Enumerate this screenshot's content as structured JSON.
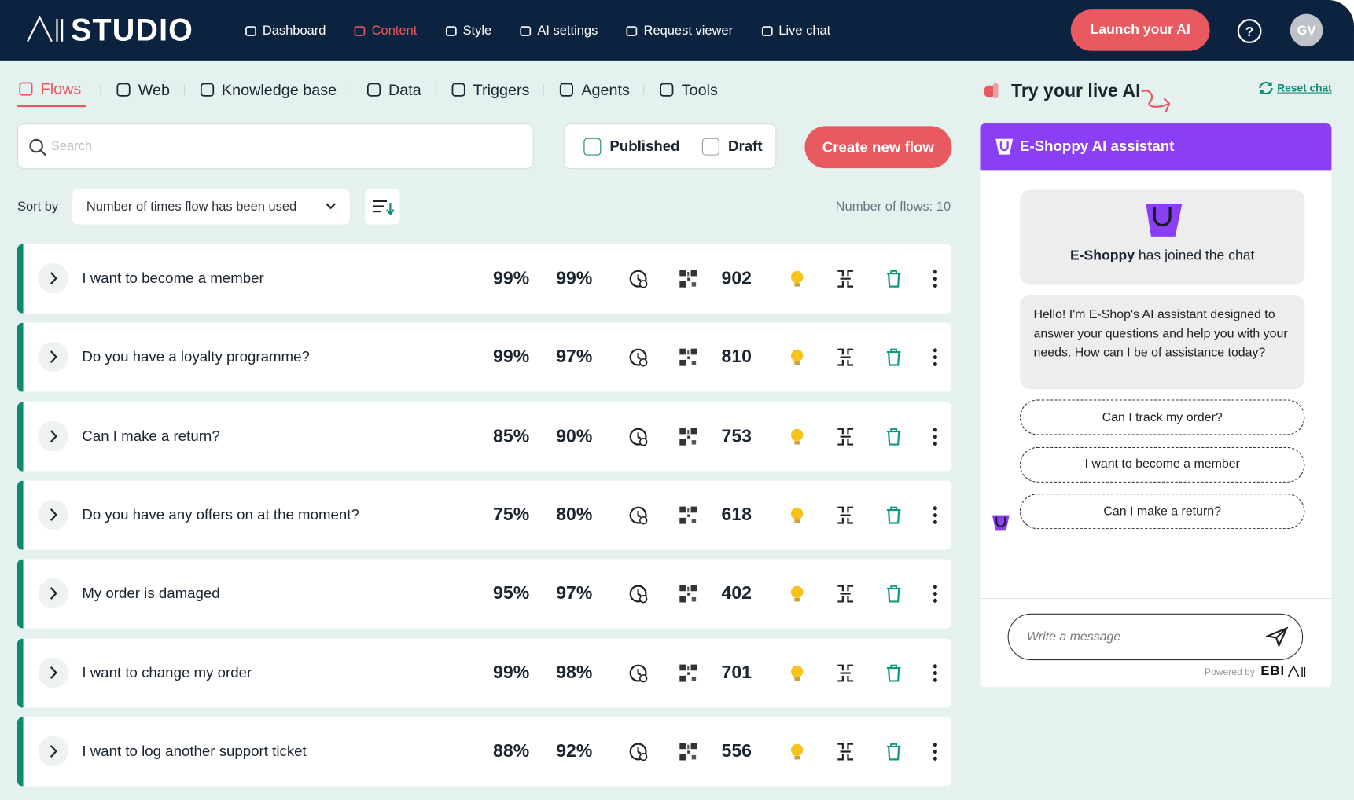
{
  "header": {
    "logo": "STUDIO",
    "nav": [
      "Dashboard",
      "Content",
      "Style",
      "AI settings",
      "Request viewer",
      "Live chat"
    ],
    "launch_button": "Launch your AI",
    "avatar": "GV"
  },
  "tabs": [
    "Flows",
    "Web",
    "Knowledge base",
    "Data",
    "Triggers",
    "Agents",
    "Tools"
  ],
  "toolbar": {
    "search_placeholder": "Search",
    "filters": [
      "Published",
      "Draft"
    ],
    "create_button": "Create new flow",
    "sort_label": "Sort by",
    "sort_option": "Number of times flow has been used",
    "flow_count": "Number of flows: 10"
  },
  "flows": [
    {
      "title": "I want to become a member",
      "metric_1": "99%",
      "metric_2": "99%",
      "uses": "902"
    },
    {
      "title": "Do you have a loyalty programme?",
      "metric_1": "99%",
      "metric_2": "97%",
      "uses": "810"
    },
    {
      "title": "Can I make a return?",
      "metric_1": "85%",
      "metric_2": "90%",
      "uses": "753"
    },
    {
      "title": "Do you have any offers on at the moment?",
      "metric_1": "75%",
      "metric_2": "80%",
      "uses": "618"
    },
    {
      "title": "My order is damaged",
      "metric_1": "95%",
      "metric_2": "97%",
      "uses": "402"
    },
    {
      "title": "I want to change my order",
      "metric_1": "99%",
      "metric_2": "98%",
      "uses": "701"
    },
    {
      "title": "I want to log another support ticket",
      "metric_1": "88%",
      "metric_2": "92%",
      "uses": "556"
    }
  ],
  "chat": {
    "title": "Try your live AI",
    "reset": "Reset chat",
    "assistant_name": "E-Shoppy AI assistant",
    "joined_name": "E-Shoppy",
    "joined_text": "has joined the chat",
    "message": "Hello! I'm E-Shop's AI assistant designed to answer your questions and help you with your needs. How can I be of assistance today?",
    "suggestions": [
      "Can I track my order?",
      "I want to become a member",
      "Can I make a return?"
    ],
    "input_placeholder": "Write a message",
    "powered_by": "Powered by",
    "brand": "EBI"
  }
}
